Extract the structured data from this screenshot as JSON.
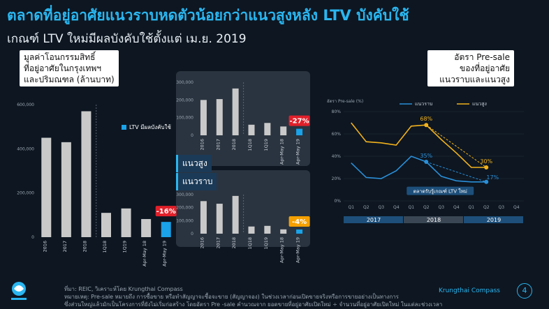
{
  "title": "ตลาดที่อยู่อาศัยแนวราบหดตัวน้อยกว่าแนวสูงหลัง LTV บังคับใช้",
  "subtitle": "เกณฑ์ LTV ใหม่มีผลบังคับใช้ตั้งแต่ เม.ย. 2019",
  "left_box": [
    "มูลค่าโอนกรรมสิทธิ์",
    "ที่อยู่อาศัยในกรุงเทพฯ",
    "และปริมณฑล (ล้านบาท)"
  ],
  "legend_ltv": "LTV มีผลบังคับใช้",
  "right_box": [
    "อัตรา Pre-sale",
    "ของที่อยู่อาศัย",
    "แนวราบและแนวสูง"
  ],
  "seg_high": "แนวสูง",
  "seg_low": "แนวราบ",
  "colors": {
    "accent": "#2ab6f0",
    "bar": "#c9c9c9",
    "ltv": "#1aa3e8",
    "badge_red": "#e0202a",
    "badge_orange": "#f5a000",
    "low_line": "#2a8fd8",
    "high_line": "#f2b21c"
  },
  "footnote": [
    "ที่มา: REIC, วิเคราะห์โดย Krungthai Compass",
    "หมายเหตุ: Pre-sale หมายถึง การซื้อขาย หรือทำสัญญาจะซื้อจะขาย (สัญญาจอง) ในช่วงเวลาก่อนเปิดขายจริงหรือการขายอย่างเป็นทางการ",
    "ซึ่งส่วนใหญ่แล้วมักเป็นโครงการที่ยังไม่เริ่มก่อสร้าง โดยอัตรา Pre -sale คำนวณจาก ยอดขายที่อยู่อาศัยเปิดใหม่ ÷ จำนวนที่อยู่อาศัยเปิดใหม่ ในแต่ละช่วงเวลา"
  ],
  "brand": "Krungthai Compass",
  "page": "4",
  "chart_data": [
    {
      "type": "bar",
      "categories": [
        "2016",
        "2017",
        "2018",
        "1Q18",
        "1Q19",
        "Apr-May 18",
        "Apr-May 19"
      ],
      "values": [
        450000,
        430000,
        570000,
        110000,
        130000,
        82000,
        69000
      ],
      "highlight_index": 6,
      "ylim": [
        0,
        600000
      ],
      "yticks": [
        "0",
        "200,000",
        "400,000",
        "600,000"
      ],
      "badge": "-16%"
    },
    {
      "type": "bar",
      "title": "แนวสูง",
      "categories": [
        "2016",
        "2017",
        "2018",
        "1Q18",
        "1Q19",
        "Apr-May 18",
        "Apr-May 19"
      ],
      "values": [
        200000,
        205000,
        265000,
        60000,
        70000,
        50000,
        37000
      ],
      "highlight_index": 6,
      "ylim": [
        0,
        300000
      ],
      "yticks": [
        "0",
        "100,000",
        "200,000",
        "300,000"
      ],
      "badge": "-27%"
    },
    {
      "type": "bar",
      "title": "แนวราบ",
      "categories": [
        "2016",
        "2017",
        "2018",
        "1Q18",
        "1Q19",
        "Apr-May 18",
        "Apr-May 19"
      ],
      "values": [
        250000,
        230000,
        290000,
        55000,
        60000,
        33000,
        32000
      ],
      "highlight_index": 6,
      "ylim": [
        0,
        300000
      ],
      "yticks": [
        "0",
        "100,000",
        "200,000",
        "300,000"
      ],
      "badge": "-4%"
    },
    {
      "type": "line",
      "ylabel": "อัตรา Pre-sale (%)",
      "x": [
        "Q1",
        "Q2",
        "Q3",
        "Q4",
        "Q1",
        "Q2",
        "Q3",
        "Q4",
        "Q1",
        "Q2",
        "Q3",
        "Q4"
      ],
      "groups": [
        "2017",
        "2018",
        "2019"
      ],
      "ylim": [
        0,
        80
      ],
      "yticks": [
        "0%",
        "20%",
        "40%",
        "60%",
        "80%"
      ],
      "series": [
        {
          "name": "แนวราบ",
          "values": [
            34,
            21,
            20,
            27,
            40,
            35,
            22,
            18,
            17,
            17,
            null,
            null
          ]
        },
        {
          "name": "แนวสูง",
          "values": [
            70,
            53,
            52,
            50,
            67,
            68,
            55,
            43,
            30,
            30,
            null,
            null
          ]
        }
      ],
      "annotations": [
        "68%",
        "35%",
        "30%",
        "17%"
      ],
      "callout": "ตลาดรับรู้เกณฑ์ LTV ใหม่"
    }
  ]
}
